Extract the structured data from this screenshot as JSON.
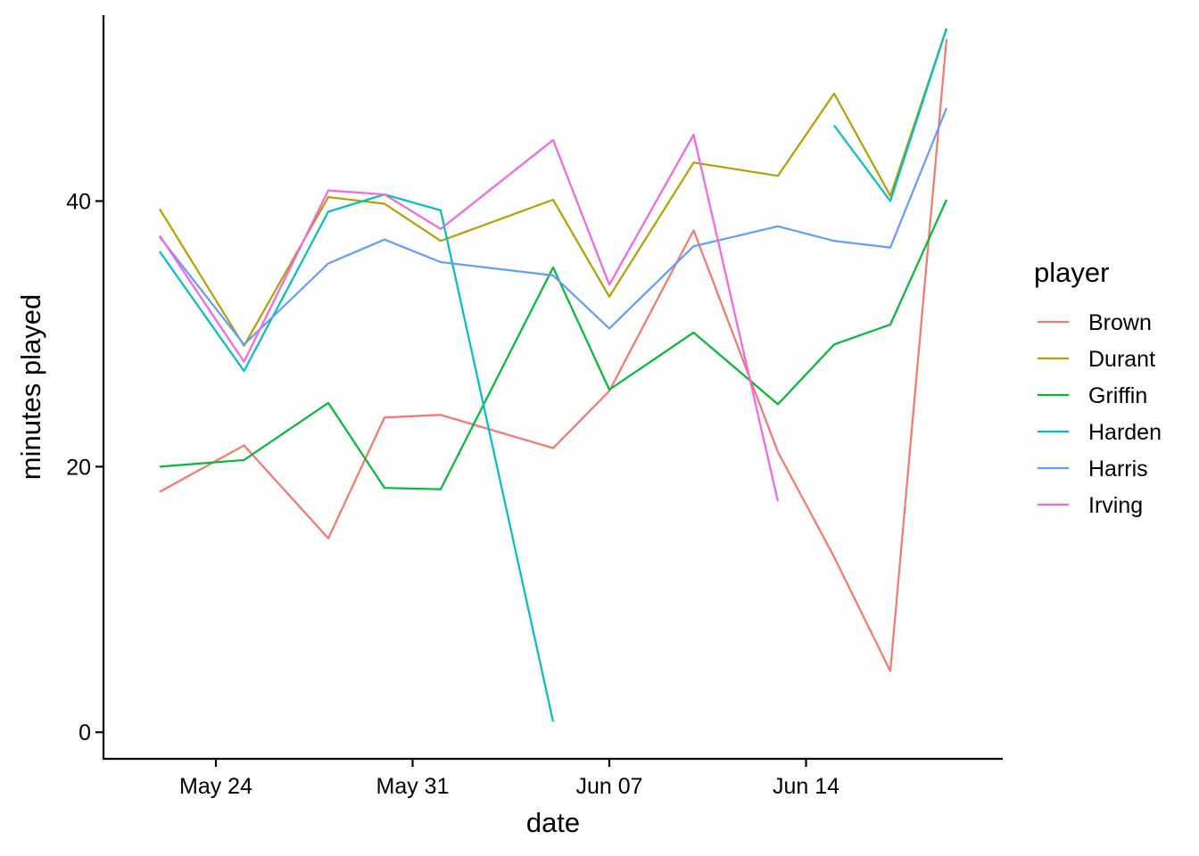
{
  "chart_data": {
    "type": "line",
    "xlabel": "date",
    "ylabel": "minutes played",
    "xlim": [
      "2020-05-20",
      "2020-06-21"
    ],
    "ylim": [
      -2,
      54
    ],
    "x_ticks": [
      {
        "date": "2020-05-24",
        "label": "May 24"
      },
      {
        "date": "2020-05-31",
        "label": "May 31"
      },
      {
        "date": "2020-06-07",
        "label": "Jun 07"
      },
      {
        "date": "2020-06-14",
        "label": "Jun 14"
      }
    ],
    "y_ticks": [
      0,
      20,
      40
    ],
    "grid": false,
    "legend": {
      "title": "player",
      "position": "right"
    },
    "series": [
      {
        "name": "Brown",
        "color": "#F8766D",
        "points": [
          [
            "2020-05-22",
            18.1
          ],
          [
            "2020-05-25",
            21.6
          ],
          [
            "2020-05-28",
            14.6
          ],
          [
            "2020-05-30",
            23.7
          ],
          [
            "2020-06-01",
            23.9
          ],
          [
            "2020-06-05",
            21.4
          ],
          [
            "2020-06-07",
            25.7
          ],
          [
            "2020-06-10",
            37.8
          ],
          [
            "2020-06-13",
            21.1
          ],
          [
            "2020-06-15",
            13.2
          ],
          [
            "2020-06-17",
            4.6
          ],
          [
            "2020-06-19",
            52.2
          ]
        ]
      },
      {
        "name": "Durant",
        "color": "#B79F00",
        "points": [
          [
            "2020-05-22",
            39.4
          ],
          [
            "2020-05-25",
            29.1
          ],
          [
            "2020-05-28",
            40.3
          ],
          [
            "2020-05-30",
            39.8
          ],
          [
            "2020-06-01",
            37.0
          ],
          [
            "2020-06-05",
            40.1
          ],
          [
            "2020-06-07",
            32.8
          ],
          [
            "2020-06-10",
            42.9
          ],
          [
            "2020-06-13",
            41.9
          ],
          [
            "2020-06-15",
            48.1
          ],
          [
            "2020-06-17",
            40.4
          ],
          [
            "2020-06-19",
            53.0
          ]
        ]
      },
      {
        "name": "Griffin",
        "color": "#00BA38",
        "points": [
          [
            "2020-05-22",
            20.0
          ],
          [
            "2020-05-25",
            20.5
          ],
          [
            "2020-05-28",
            24.8
          ],
          [
            "2020-05-30",
            18.4
          ],
          [
            "2020-06-01",
            18.3
          ],
          [
            "2020-06-05",
            35.0
          ],
          [
            "2020-06-07",
            25.8
          ],
          [
            "2020-06-10",
            30.1
          ],
          [
            "2020-06-13",
            24.7
          ],
          [
            "2020-06-15",
            29.2
          ],
          [
            "2020-06-17",
            30.7
          ],
          [
            "2020-06-19",
            40.1
          ]
        ]
      },
      {
        "name": "Harden",
        "color": "#00BFC4",
        "points": [
          [
            "2020-05-22",
            36.2
          ],
          [
            "2020-05-25",
            27.2
          ],
          [
            "2020-05-28",
            39.2
          ],
          [
            "2020-05-30",
            40.5
          ],
          [
            "2020-06-01",
            39.3
          ],
          [
            "2020-06-05",
            0.8
          ]
        ]
      },
      {
        "name": "Harden",
        "color": "#00BFC4",
        "points": [
          [
            "2020-06-15",
            45.7
          ],
          [
            "2020-06-17",
            40.0
          ],
          [
            "2020-06-19",
            53.0
          ]
        ]
      },
      {
        "name": "Harris",
        "color": "#619CFF",
        "points": [
          [
            "2020-05-22",
            37.3
          ],
          [
            "2020-05-25",
            29.2
          ],
          [
            "2020-05-28",
            35.3
          ],
          [
            "2020-05-30",
            37.1
          ],
          [
            "2020-06-01",
            35.4
          ],
          [
            "2020-06-05",
            34.4
          ],
          [
            "2020-06-07",
            30.4
          ],
          [
            "2020-06-10",
            36.6
          ],
          [
            "2020-06-13",
            38.1
          ],
          [
            "2020-06-15",
            37.0
          ],
          [
            "2020-06-17",
            36.5
          ],
          [
            "2020-06-19",
            47.0
          ]
        ]
      },
      {
        "name": "Irving",
        "color": "#F564E3",
        "points": [
          [
            "2020-05-22",
            37.4
          ],
          [
            "2020-05-25",
            27.9
          ],
          [
            "2020-05-28",
            40.8
          ],
          [
            "2020-05-30",
            40.5
          ],
          [
            "2020-06-01",
            37.9
          ],
          [
            "2020-06-05",
            44.6
          ],
          [
            "2020-06-07",
            33.7
          ],
          [
            "2020-06-10",
            45.0
          ],
          [
            "2020-06-13",
            17.4
          ]
        ]
      }
    ],
    "legend_items": [
      {
        "name": "Brown",
        "color": "#F8766D"
      },
      {
        "name": "Durant",
        "color": "#B79F00"
      },
      {
        "name": "Griffin",
        "color": "#00BA38"
      },
      {
        "name": "Harden",
        "color": "#00BFC4"
      },
      {
        "name": "Harris",
        "color": "#619CFF"
      },
      {
        "name": "Irving",
        "color": "#F564E3"
      }
    ]
  }
}
